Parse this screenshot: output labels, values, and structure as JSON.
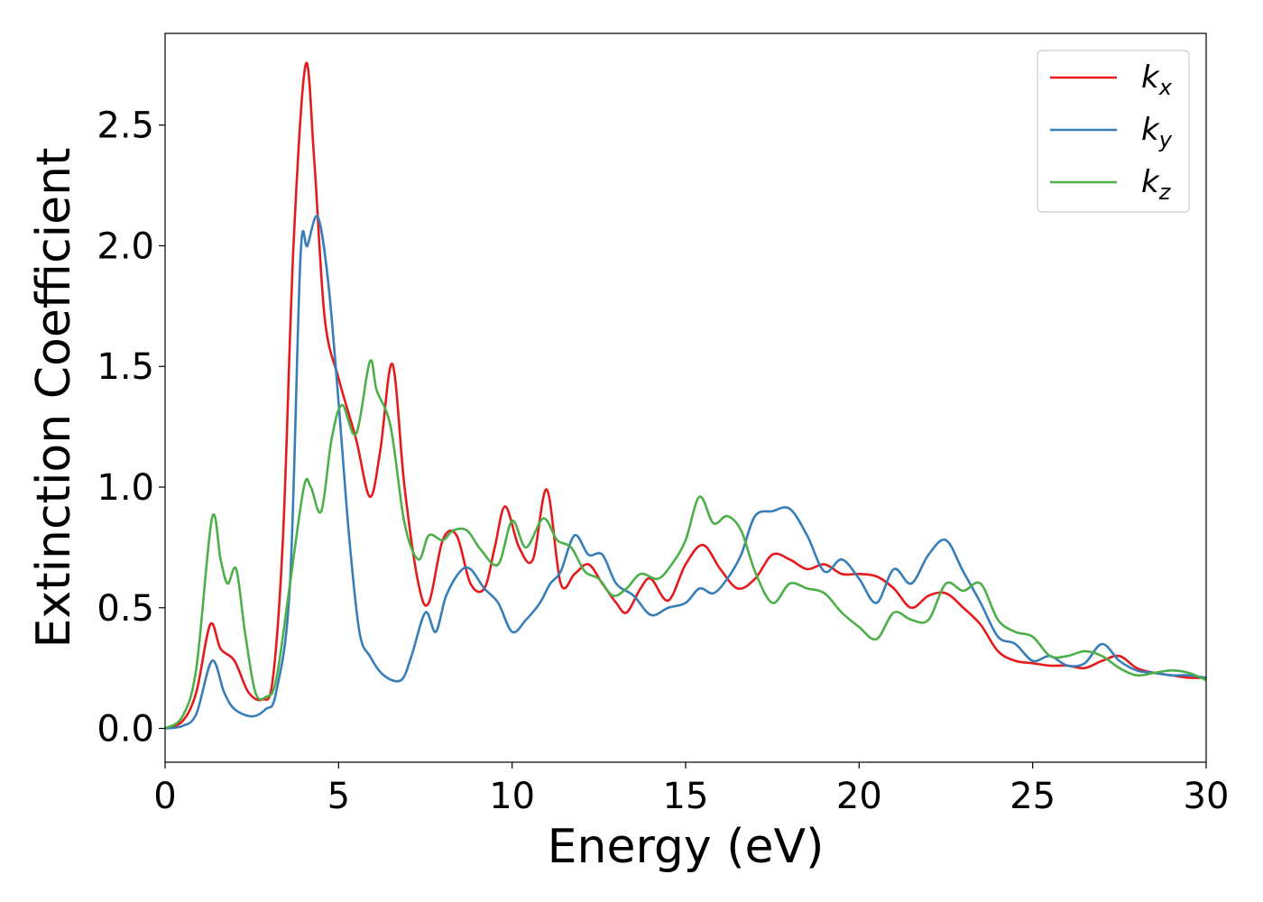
{
  "chart_data": {
    "type": "line",
    "title": "",
    "xlabel": "Energy (eV)",
    "ylabel": "Extinction Coefficient",
    "xlim": [
      0,
      30
    ],
    "ylim": [
      -0.14,
      2.88
    ],
    "xticks": [
      0,
      5,
      10,
      15,
      20,
      25,
      30
    ],
    "xtick_labels": [
      "0",
      "5",
      "10",
      "15",
      "20",
      "25",
      "30"
    ],
    "yticks": [
      0.0,
      0.5,
      1.0,
      1.5,
      2.0,
      2.5
    ],
    "ytick_labels": [
      "0.0",
      "0.5",
      "1.0",
      "1.5",
      "2.0",
      "2.5"
    ],
    "grid": false,
    "legend_position": "top-right",
    "series": [
      {
        "name": "k",
        "subscript": "x",
        "color": "#e41a1c",
        "x": [
          0,
          0.5,
          0.9,
          1.3,
          1.6,
          2.0,
          2.4,
          2.8,
          3.1,
          3.4,
          3.7,
          4.05,
          4.3,
          4.6,
          5.0,
          5.5,
          5.9,
          6.2,
          6.55,
          6.9,
          7.3,
          7.6,
          8.0,
          8.4,
          8.8,
          9.2,
          9.5,
          9.8,
          10.2,
          10.6,
          11.0,
          11.4,
          11.8,
          12.2,
          12.6,
          13.0,
          13.3,
          13.7,
          14.0,
          14.5,
          15.0,
          15.5,
          16.0,
          16.5,
          17.0,
          17.5,
          18.0,
          18.5,
          19.0,
          19.5,
          20.0,
          20.5,
          21.0,
          21.5,
          22.0,
          22.5,
          23.0,
          23.5,
          24.0,
          24.5,
          25.0,
          25.5,
          26.0,
          26.5,
          27.0,
          27.5,
          28.0,
          28.5,
          29.0,
          29.5,
          30.0
        ],
        "y": [
          0.0,
          0.03,
          0.15,
          0.43,
          0.33,
          0.28,
          0.15,
          0.12,
          0.2,
          0.8,
          2.0,
          2.75,
          2.35,
          1.7,
          1.45,
          1.2,
          0.96,
          1.15,
          1.51,
          1.0,
          0.6,
          0.52,
          0.78,
          0.8,
          0.6,
          0.58,
          0.75,
          0.92,
          0.75,
          0.7,
          0.99,
          0.6,
          0.64,
          0.68,
          0.6,
          0.52,
          0.48,
          0.58,
          0.62,
          0.53,
          0.68,
          0.76,
          0.66,
          0.58,
          0.62,
          0.72,
          0.7,
          0.66,
          0.68,
          0.64,
          0.64,
          0.63,
          0.58,
          0.5,
          0.55,
          0.56,
          0.5,
          0.43,
          0.32,
          0.28,
          0.27,
          0.26,
          0.26,
          0.25,
          0.28,
          0.3,
          0.25,
          0.23,
          0.22,
          0.21,
          0.21
        ]
      },
      {
        "name": "k",
        "subscript": "y",
        "color": "#377eb8",
        "x": [
          0,
          0.5,
          0.9,
          1.35,
          1.7,
          2.0,
          2.5,
          2.9,
          3.2,
          3.6,
          3.9,
          4.1,
          4.4,
          4.7,
          5.0,
          5.3,
          5.6,
          5.9,
          6.3,
          6.8,
          7.1,
          7.5,
          7.8,
          8.1,
          8.5,
          8.8,
          9.2,
          9.6,
          10.0,
          10.4,
          10.8,
          11.1,
          11.4,
          11.8,
          12.2,
          12.6,
          13.0,
          13.5,
          14.0,
          14.5,
          15.0,
          15.4,
          15.8,
          16.2,
          16.6,
          17.0,
          17.5,
          18.0,
          18.5,
          19.0,
          19.5,
          20.0,
          20.5,
          21.0,
          21.5,
          22.0,
          22.5,
          23.0,
          23.5,
          24.0,
          24.5,
          25.0,
          25.5,
          26.0,
          26.5,
          27.0,
          27.5,
          28.0,
          28.5,
          29.0,
          29.5,
          30.0
        ],
        "y": [
          0.0,
          0.01,
          0.06,
          0.28,
          0.15,
          0.08,
          0.05,
          0.08,
          0.15,
          0.6,
          1.95,
          2.0,
          2.12,
          1.85,
          1.35,
          0.8,
          0.4,
          0.3,
          0.22,
          0.2,
          0.3,
          0.48,
          0.4,
          0.55,
          0.65,
          0.66,
          0.58,
          0.52,
          0.4,
          0.45,
          0.52,
          0.6,
          0.65,
          0.8,
          0.72,
          0.72,
          0.6,
          0.55,
          0.47,
          0.5,
          0.52,
          0.58,
          0.56,
          0.62,
          0.72,
          0.88,
          0.9,
          0.91,
          0.8,
          0.65,
          0.7,
          0.62,
          0.52,
          0.66,
          0.6,
          0.72,
          0.78,
          0.65,
          0.52,
          0.38,
          0.35,
          0.28,
          0.3,
          0.26,
          0.27,
          0.35,
          0.28,
          0.24,
          0.23,
          0.22,
          0.22,
          0.21
        ]
      },
      {
        "name": "k",
        "subscript": "z",
        "color": "#4daf4a",
        "x": [
          0,
          0.5,
          0.9,
          1.35,
          1.6,
          1.8,
          2.05,
          2.3,
          2.6,
          2.9,
          3.2,
          3.6,
          4.0,
          4.2,
          4.5,
          4.8,
          5.1,
          5.5,
          5.9,
          6.1,
          6.5,
          6.9,
          7.3,
          7.6,
          8.0,
          8.3,
          8.7,
          9.1,
          9.6,
          10.0,
          10.4,
          10.9,
          11.3,
          11.7,
          12.1,
          12.5,
          12.9,
          13.3,
          13.7,
          14.2,
          14.6,
          15.0,
          15.4,
          15.8,
          16.2,
          16.6,
          17.0,
          17.5,
          18.0,
          18.5,
          19.0,
          19.5,
          20.0,
          20.5,
          21.0,
          21.5,
          22.0,
          22.5,
          23.0,
          23.5,
          24.0,
          24.5,
          25.0,
          25.5,
          26.0,
          26.5,
          27.0,
          27.5,
          28.0,
          28.5,
          29.0,
          29.5,
          30.0
        ],
        "y": [
          0.0,
          0.05,
          0.25,
          0.87,
          0.7,
          0.6,
          0.66,
          0.4,
          0.15,
          0.13,
          0.2,
          0.6,
          1.0,
          1.0,
          0.9,
          1.2,
          1.34,
          1.22,
          1.52,
          1.4,
          1.25,
          0.85,
          0.7,
          0.8,
          0.78,
          0.82,
          0.82,
          0.74,
          0.68,
          0.86,
          0.75,
          0.87,
          0.78,
          0.75,
          0.65,
          0.62,
          0.55,
          0.58,
          0.64,
          0.62,
          0.68,
          0.78,
          0.96,
          0.85,
          0.88,
          0.82,
          0.65,
          0.52,
          0.6,
          0.58,
          0.56,
          0.48,
          0.42,
          0.37,
          0.48,
          0.45,
          0.45,
          0.6,
          0.57,
          0.6,
          0.45,
          0.4,
          0.38,
          0.3,
          0.3,
          0.32,
          0.3,
          0.25,
          0.22,
          0.23,
          0.24,
          0.23,
          0.2
        ]
      }
    ]
  }
}
